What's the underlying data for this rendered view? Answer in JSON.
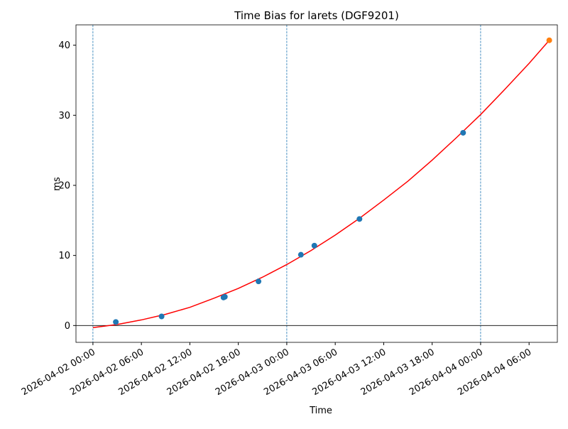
{
  "chart_data": {
    "type": "scatter",
    "title": "Time Bias for larets (DGF9201)",
    "x_label": "Time",
    "y_label": "ms",
    "xlim": [
      "2026-04-01 21:54",
      "2026-04-04 09:30"
    ],
    "xticks": [
      "2026-04-02 00:00",
      "2026-04-02 06:00",
      "2026-04-02 12:00",
      "2026-04-02 18:00",
      "2026-04-03 00:00",
      "2026-04-03 06:00",
      "2026-04-03 12:00",
      "2026-04-03 18:00",
      "2026-04-04 00:00",
      "2026-04-04 06:00"
    ],
    "ylim": [
      -2.4,
      42.9
    ],
    "yticks": [
      0,
      10,
      20,
      30,
      40
    ],
    "vlines": [
      "2026-04-02 00:00",
      "2026-04-03 00:00",
      "2026-04-04 00:00"
    ],
    "hline": 0,
    "series": [
      {
        "style": "line",
        "color": "#ff0000",
        "x": [
          "2026-04-02 00:00",
          "2026-04-02 03:00",
          "2026-04-02 06:00",
          "2026-04-02 09:00",
          "2026-04-02 12:00",
          "2026-04-02 15:00",
          "2026-04-02 18:00",
          "2026-04-02 21:00",
          "2026-04-03 00:00",
          "2026-04-03 03:00",
          "2026-04-03 06:00",
          "2026-04-03 09:00",
          "2026-04-03 12:00",
          "2026-04-03 15:00",
          "2026-04-03 18:00",
          "2026-04-03 21:00",
          "2026-04-04 00:00",
          "2026-04-04 03:00",
          "2026-04-04 06:00",
          "2026-04-04 08:30"
        ],
        "values": [
          -0.3,
          0.15,
          0.8,
          1.6,
          2.6,
          3.9,
          5.3,
          6.9,
          8.7,
          10.7,
          12.9,
          15.3,
          17.9,
          20.6,
          23.6,
          26.8,
          30.1,
          33.7,
          37.4,
          40.7
        ]
      },
      {
        "style": "scatter",
        "color": "#1f77b4",
        "x": [
          "2026-04-02 02:50",
          "2026-04-02 08:30",
          "2026-04-02 16:10",
          "2026-04-02 16:20",
          "2026-04-02 20:30",
          "2026-04-03 01:45",
          "2026-04-03 03:25",
          "2026-04-03 09:00",
          "2026-04-03 21:50"
        ],
        "values": [
          0.5,
          1.3,
          4.0,
          4.1,
          6.3,
          10.1,
          11.4,
          15.2,
          27.5
        ]
      },
      {
        "style": "scatter",
        "color": "#ff7f0e",
        "x": [
          "2026-04-04 08:30"
        ],
        "values": [
          40.7
        ]
      }
    ]
  }
}
